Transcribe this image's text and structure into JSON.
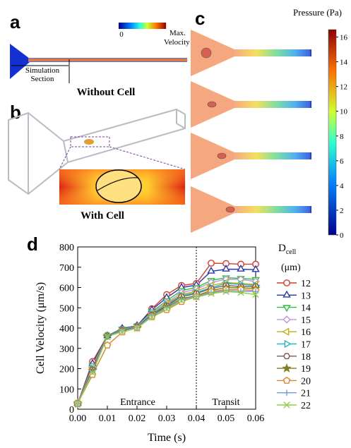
{
  "panel_a": {
    "label": "a",
    "colorbar_min": "0",
    "colorbar_max": [
      "Max.",
      "Velocity"
    ],
    "section": [
      "Simulation",
      "Section"
    ],
    "caption": "Without Cell"
  },
  "panel_b": {
    "label": "b",
    "caption": "With Cell"
  },
  "panel_c": {
    "label": "c",
    "colorbar": {
      "label": "Pressure (Pa)",
      "clim": [
        0,
        16.6
      ],
      "ticks": [
        0,
        2,
        4,
        6,
        8,
        10,
        12,
        14,
        16
      ]
    }
  },
  "chart_data": {
    "type": "line",
    "panel_label": "d",
    "x_label": "Time (s)",
    "y_label": "Cell Velocity (μm/s)",
    "legend_title": {
      "symbol": "D",
      "subscript": "cell",
      "unit": "(μm)"
    },
    "annotations": [
      "Entrance",
      "Transit"
    ],
    "vline": 0.04,
    "x": [
      0,
      0.005,
      0.01,
      0.015,
      0.02,
      0.025,
      0.03,
      0.035,
      0.04,
      0.045,
      0.05,
      0.055,
      0.06
    ],
    "xlim": [
      0,
      0.06
    ],
    "ylim": [
      0,
      800
    ],
    "xticks": [
      {
        "value": 0,
        "label": "0.00"
      },
      {
        "value": 0.01,
        "label": "0.01"
      },
      {
        "value": 0.02,
        "label": "0.02"
      },
      {
        "value": 0.03,
        "label": "0.03"
      },
      {
        "value": 0.04,
        "label": "0.04"
      },
      {
        "value": 0.05,
        "label": "0.05"
      },
      {
        "value": 0.06,
        "label": "0.06"
      }
    ],
    "yticks": [
      0,
      100,
      200,
      300,
      400,
      500,
      600,
      700,
      800
    ],
    "series": [
      {
        "name": "12",
        "color": "#d93a2b",
        "marker": "circle",
        "values": [
          28,
          235,
          362,
          395,
          410,
          495,
          565,
          610,
          620,
          720,
          718,
          715,
          715
        ]
      },
      {
        "name": "13",
        "color": "#2336b8",
        "marker": "triangle-up",
        "values": [
          28,
          225,
          362,
          398,
          412,
          490,
          550,
          600,
          612,
          680,
          690,
          690,
          688
        ]
      },
      {
        "name": "14",
        "color": "#2fbf3a",
        "marker": "triangle-down",
        "values": [
          28,
          215,
          362,
          395,
          410,
          480,
          535,
          585,
          600,
          635,
          648,
          645,
          640
        ]
      },
      {
        "name": "15",
        "color": "#c394e0",
        "marker": "diamond",
        "values": [
          28,
          210,
          362,
          392,
          408,
          475,
          525,
          575,
          592,
          625,
          640,
          640,
          630
        ]
      },
      {
        "name": "16",
        "color": "#c2ad1f",
        "marker": "triangle-left",
        "values": [
          28,
          205,
          362,
          390,
          405,
          470,
          520,
          565,
          582,
          610,
          625,
          620,
          615
        ]
      },
      {
        "name": "17",
        "color": "#22bcc0",
        "marker": "triangle-right",
        "values": [
          28,
          200,
          362,
          390,
          405,
          468,
          515,
          560,
          575,
          600,
          620,
          615,
          610
        ]
      },
      {
        "name": "18",
        "color": "#7f5656",
        "marker": "hexagon",
        "values": [
          28,
          195,
          362,
          388,
          405,
          465,
          510,
          555,
          570,
          595,
          610,
          605,
          605
        ]
      },
      {
        "name": "19",
        "color": "#7f7f1f",
        "marker": "star",
        "values": [
          28,
          190,
          360,
          385,
          402,
          462,
          505,
          545,
          560,
          585,
          600,
          598,
          595
        ]
      },
      {
        "name": "20",
        "color": "#e0862a",
        "marker": "pentagon",
        "values": [
          28,
          170,
          315,
          380,
          400,
          455,
          490,
          530,
          555,
          580,
          590,
          590,
          585
        ]
      },
      {
        "name": "21",
        "color": "#6c9ee0",
        "marker": "plus",
        "values": [
          28,
          185,
          360,
          385,
          402,
          460,
          500,
          540,
          555,
          575,
          585,
          582,
          580
        ]
      },
      {
        "name": "22",
        "color": "#8fd046",
        "marker": "cross",
        "values": [
          28,
          180,
          358,
          382,
          400,
          455,
          495,
          535,
          552,
          570,
          580,
          575,
          565
        ]
      }
    ]
  }
}
